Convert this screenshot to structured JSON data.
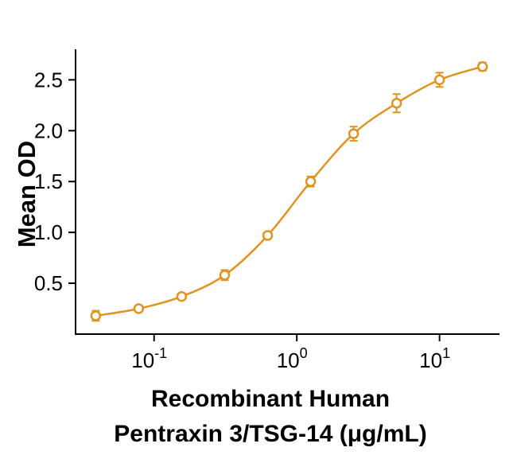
{
  "chart_data": {
    "type": "line",
    "title": "",
    "ylabel": "Mean OD",
    "xlabel_line1": "Recombinant Human",
    "xlabel_line2": "Pentraxin 3/TSG-14 (μg/mL)",
    "x": [
      0.039,
      0.078,
      0.156,
      0.3125,
      0.625,
      1.25,
      2.5,
      5,
      10,
      20
    ],
    "y": [
      0.18,
      0.25,
      0.37,
      0.58,
      0.97,
      1.5,
      1.97,
      2.27,
      2.5,
      2.63
    ],
    "err": [
      0.05,
      0.02,
      0.03,
      0.05,
      0.03,
      0.05,
      0.07,
      0.09,
      0.07,
      0.04
    ],
    "y_ticks": [
      0.5,
      1.0,
      1.5,
      2.0,
      2.5
    ],
    "x_tick_exponents": [
      -1,
      0,
      1
    ],
    "ylim": [
      0,
      2.8
    ],
    "xlog_range": [
      -1.55,
      1.42
    ],
    "line_color": "#E0941F",
    "marker": "open-circle",
    "grid": false,
    "legend": "none",
    "axis_color": "#000000"
  }
}
